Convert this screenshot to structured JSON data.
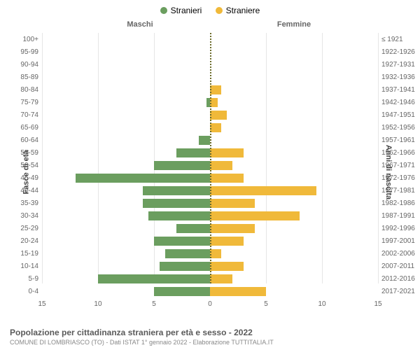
{
  "chart": {
    "type": "population-pyramid",
    "legend": [
      {
        "label": "Stranieri",
        "color": "#6b9e5f"
      },
      {
        "label": "Straniere",
        "color": "#f0b93a"
      }
    ],
    "column_headers": {
      "left": "Maschi",
      "right": "Femmine"
    },
    "y_axis_left_title": "Fasce di età",
    "y_axis_right_title": "Anni di nascita",
    "x_axis": {
      "max": 15,
      "ticks_left": [
        15,
        10,
        5,
        0
      ],
      "ticks_right": [
        5,
        10,
        15
      ]
    },
    "bar_colors": {
      "male": "#6b9e5f",
      "female": "#f0b93a"
    },
    "background_color": "#ffffff",
    "grid_color": "#e6e6e6",
    "center_line_color": "#6b6b2a",
    "label_fontsize": 10,
    "rows": [
      {
        "age": "100+",
        "birth": "≤ 1921",
        "male": 0,
        "female": 0
      },
      {
        "age": "95-99",
        "birth": "1922-1926",
        "male": 0,
        "female": 0
      },
      {
        "age": "90-94",
        "birth": "1927-1931",
        "male": 0,
        "female": 0
      },
      {
        "age": "85-89",
        "birth": "1932-1936",
        "male": 0,
        "female": 0
      },
      {
        "age": "80-84",
        "birth": "1937-1941",
        "male": 0,
        "female": 1
      },
      {
        "age": "75-79",
        "birth": "1942-1946",
        "male": 0.3,
        "female": 0.7
      },
      {
        "age": "70-74",
        "birth": "1947-1951",
        "male": 0,
        "female": 1.5
      },
      {
        "age": "65-69",
        "birth": "1952-1956",
        "male": 0,
        "female": 1
      },
      {
        "age": "60-64",
        "birth": "1957-1961",
        "male": 1,
        "female": 0
      },
      {
        "age": "55-59",
        "birth": "1962-1966",
        "male": 3,
        "female": 3
      },
      {
        "age": "50-54",
        "birth": "1967-1971",
        "male": 5,
        "female": 2
      },
      {
        "age": "45-49",
        "birth": "1972-1976",
        "male": 12,
        "female": 3
      },
      {
        "age": "40-44",
        "birth": "1977-1981",
        "male": 6,
        "female": 9.5
      },
      {
        "age": "35-39",
        "birth": "1982-1986",
        "male": 6,
        "female": 4
      },
      {
        "age": "30-34",
        "birth": "1987-1991",
        "male": 5.5,
        "female": 8
      },
      {
        "age": "25-29",
        "birth": "1992-1996",
        "male": 3,
        "female": 4
      },
      {
        "age": "20-24",
        "birth": "1997-2001",
        "male": 5,
        "female": 3
      },
      {
        "age": "15-19",
        "birth": "2002-2006",
        "male": 4,
        "female": 1
      },
      {
        "age": "10-14",
        "birth": "2007-2011",
        "male": 4.5,
        "female": 3
      },
      {
        "age": "5-9",
        "birth": "2012-2016",
        "male": 10,
        "female": 2
      },
      {
        "age": "0-4",
        "birth": "2017-2021",
        "male": 5,
        "female": 5
      }
    ]
  },
  "footer": {
    "title": "Popolazione per cittadinanza straniera per età e sesso - 2022",
    "subtitle": "COMUNE DI LOMBRIASCO (TO) - Dati ISTAT 1° gennaio 2022 - Elaborazione TUTTITALIA.IT"
  }
}
